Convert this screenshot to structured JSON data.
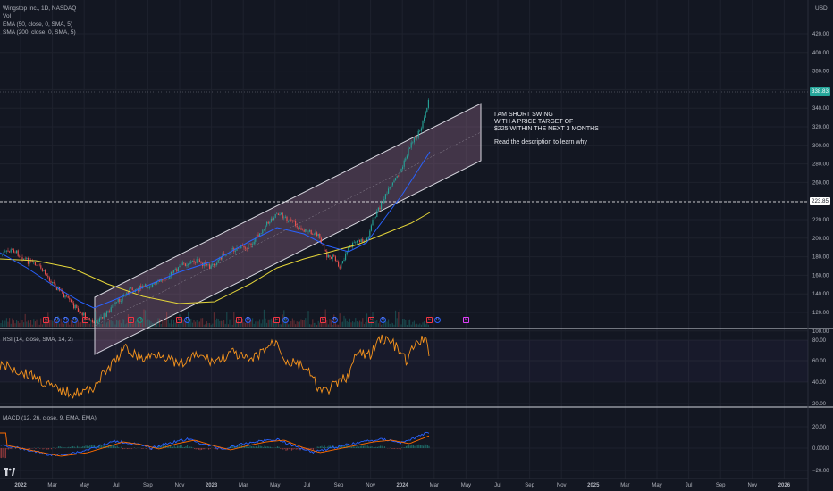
{
  "header": {
    "symbol_line": "Wingstop Inc., 1D, NASDAQ",
    "vol_label": "Vol",
    "ema_label": "EMA (50, close, 0, SMA, 5)",
    "sma_label": "SMA (200, close, 0, SMA, 5)",
    "currency": "USD"
  },
  "price_pane": {
    "y_ticks": [
      "420.00",
      "400.00",
      "380.00",
      "360.00",
      "340.00",
      "320.00",
      "300.00",
      "280.00",
      "260.00",
      "240.00",
      "220.00",
      "200.00",
      "180.00",
      "160.00",
      "140.00",
      "120.00",
      "100.00"
    ],
    "last_price_tag": "338.83",
    "target_tag": "223.85",
    "annotation": {
      "line1": "I AM SHORT SWING",
      "line2": "WITH A PRICE TARGET OF",
      "line3": "$225 WITHIN THE NEXT 3 MONTHS",
      "line4": "Read the description to learn why"
    },
    "events": [
      "E",
      "D",
      "D",
      "D",
      "E",
      "D",
      "E",
      "D",
      "E",
      "D",
      "E",
      "D",
      "E",
      "D",
      "E",
      "D",
      "E"
    ]
  },
  "rsi_pane": {
    "label": "RSI (14, close, SMA, 14, 2)",
    "y_ticks": [
      "80.00",
      "60.00",
      "40.00",
      "20.00"
    ]
  },
  "macd_pane": {
    "label": "MACD (12, 26, close, 9, EMA, EMA)",
    "y_ticks": [
      "20.00",
      "0.0000",
      "−20.00"
    ]
  },
  "time_axis": [
    "2022",
    "Mar",
    "May",
    "Jul",
    "Sep",
    "Nov",
    "2023",
    "Mar",
    "May",
    "Jul",
    "Sep",
    "Nov",
    "2024",
    "Mar",
    "May",
    "Jul",
    "Sep",
    "Nov",
    "2025",
    "Mar",
    "May",
    "Jul",
    "Sep",
    "Nov",
    "2026"
  ],
  "colors": {
    "background": "#131722",
    "ema": "#2962ff",
    "sma": "#e5d63a",
    "rsi": "#f7941d",
    "up": "#26a69a",
    "down": "#ef5350",
    "channel_fill": "#9c6c8e"
  },
  "brand": "TradingView"
}
